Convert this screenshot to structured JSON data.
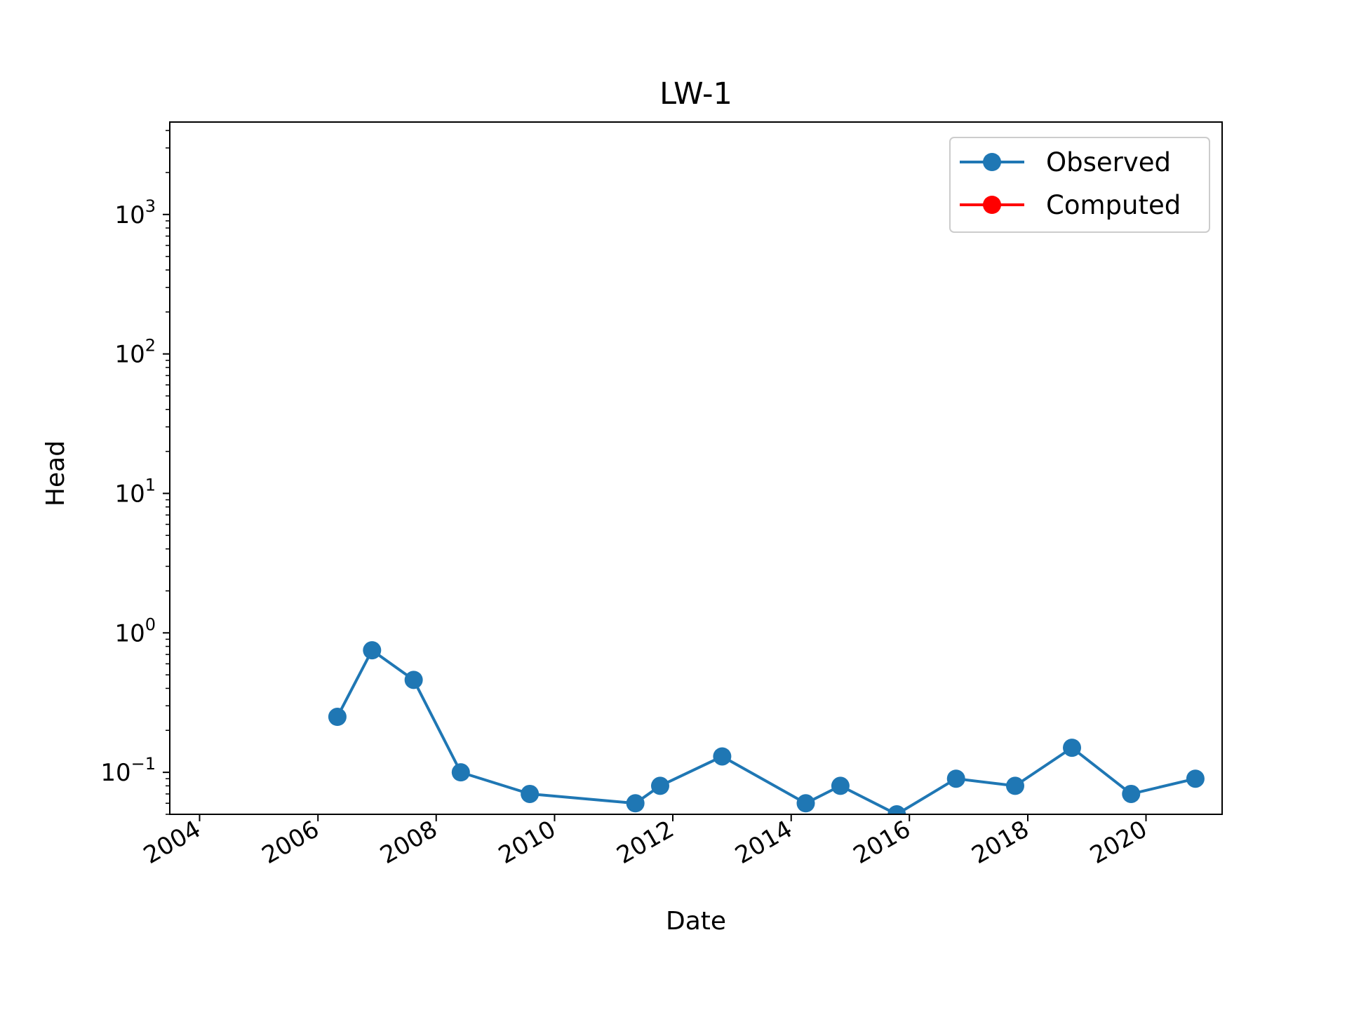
{
  "chart_data": {
    "type": "line",
    "title": "LW-1",
    "xlabel": "Date",
    "ylabel": "Head",
    "yscale": "log",
    "xlim": [
      "2003-07-01",
      "2021-04-15"
    ],
    "ylim": [
      0.05,
      4600
    ],
    "x_ticks": [
      "2004",
      "2006",
      "2008",
      "2010",
      "2012",
      "2014",
      "2016",
      "2018",
      "2020"
    ],
    "y_ticks": [
      {
        "value": 0.1,
        "base": "10",
        "exp": "−1"
      },
      {
        "value": 1,
        "base": "10",
        "exp": "0"
      },
      {
        "value": 10,
        "base": "10",
        "exp": "1"
      },
      {
        "value": 100,
        "base": "10",
        "exp": "2"
      },
      {
        "value": 1000,
        "base": "10",
        "exp": "3"
      }
    ],
    "legend": {
      "position": "top-right"
    },
    "grid": false,
    "series": [
      {
        "name": "Observed",
        "color": "#1f77b4",
        "marker": "circle",
        "points": [
          {
            "x": "2006-05-01",
            "y": 0.25
          },
          {
            "x": "2006-12-01",
            "y": 0.75
          },
          {
            "x": "2007-08-15",
            "y": 0.46
          },
          {
            "x": "2008-06-01",
            "y": 0.1
          },
          {
            "x": "2009-08-01",
            "y": 0.07
          },
          {
            "x": "2011-05-15",
            "y": 0.06
          },
          {
            "x": "2011-10-15",
            "y": 0.08
          },
          {
            "x": "2012-11-01",
            "y": 0.13
          },
          {
            "x": "2014-04-01",
            "y": 0.06
          },
          {
            "x": "2014-11-01",
            "y": 0.08
          },
          {
            "x": "2015-10-15",
            "y": 0.05
          },
          {
            "x": "2016-10-15",
            "y": 0.09
          },
          {
            "x": "2017-10-15",
            "y": 0.08
          },
          {
            "x": "2018-10-01",
            "y": 0.15
          },
          {
            "x": "2019-10-01",
            "y": 0.07
          },
          {
            "x": "2020-11-01",
            "y": 0.09
          }
        ]
      },
      {
        "name": "Computed",
        "color": "#ff0000",
        "marker": "circle",
        "points": []
      }
    ]
  }
}
